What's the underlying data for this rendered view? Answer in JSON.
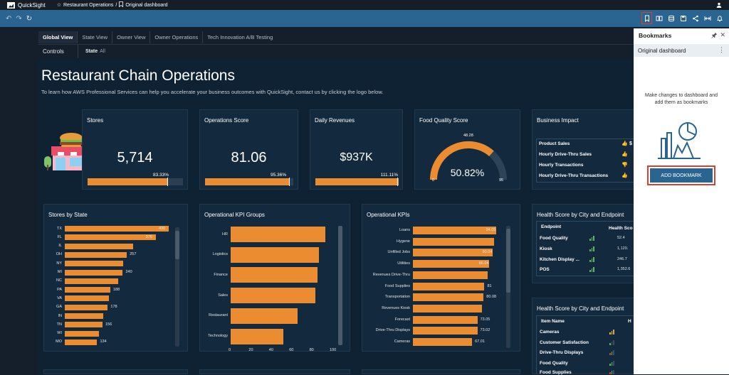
{
  "topbar": {
    "app": "QuickSight",
    "crumb1": "Restaurant Operations",
    "separator": "/",
    "crumb2": "Original dashboard"
  },
  "sheets": [
    "Global View",
    "State View",
    "Owner View",
    "Owner Operations",
    "Tech Innovation A/B Testing"
  ],
  "controls": {
    "label": "Controls",
    "state_label": "State",
    "state_value": "All"
  },
  "dashboard": {
    "title": "Restaurant Chain Operations",
    "subtitle": "To learn how AWS Professional Services can help you accelerate your business outcomes with QuickSight, contact us by clicking the logo below."
  },
  "kpis": [
    {
      "title": "Stores",
      "value": "5,714",
      "pct_label": "83.33%",
      "progress": 0.8333
    },
    {
      "title": "Operations Score",
      "value": "81.06",
      "pct_label": "95.36%",
      "progress": 0.9536
    },
    {
      "title": "Daily Revenues",
      "value": "$937K",
      "pct_label": "111.11%",
      "progress": 1.0
    }
  ],
  "gauge": {
    "title": "Food Quality Score",
    "value": "50.82%",
    "max_label": "48.28",
    "min_label": "0",
    "end_label": "95",
    "fraction": 0.73
  },
  "business": {
    "title": "Business Impact",
    "rows": [
      {
        "label": "Product Sales",
        "value": "$",
        "status": "up"
      },
      {
        "label": "Hourly Drive-Thru Sales",
        "value": "",
        "status": "up"
      },
      {
        "label": "Hourly Transactions",
        "value": "",
        "status": "down"
      },
      {
        "label": "Hourly Drive-Thru Transactions",
        "value": "",
        "status": "up"
      }
    ]
  },
  "stores_by_state": {
    "title": "Stores by State",
    "categories": [
      "TX",
      "FL",
      "IL",
      "OH",
      "NY",
      "MI",
      "NC",
      "PA",
      "VA",
      "GA",
      "IN",
      "TN",
      "WI",
      "MO"
    ],
    "values": [
      430,
      376,
      283,
      257,
      241,
      240,
      220,
      188,
      184,
      178,
      160,
      156,
      140,
      134
    ],
    "labels": [
      "430",
      "376",
      "",
      "257",
      "",
      "240",
      "",
      "188",
      "",
      "178",
      "",
      "156",
      "",
      "134"
    ],
    "max": 430
  },
  "kpi_groups": {
    "title": "Operational KPI Groups",
    "categories": [
      "HR",
      "Logistics",
      "Finance",
      "Sales",
      "Restaurant",
      "Technology"
    ],
    "values": [
      94,
      87,
      86,
      84,
      66,
      52
    ],
    "ticks": [
      "0",
      "20",
      "40",
      "60",
      "80",
      "100"
    ],
    "max": 100
  },
  "op_kpis": {
    "title": "Operational KPIs",
    "categories": [
      "Loans",
      "Hygene",
      "Unfilled Jobs",
      "Utilities",
      "Revenues Drive-Thru",
      "Food Supplies",
      "Transportation",
      "Revenues Kiosk",
      "Forecast",
      "Drive-Thru Displays",
      "Cameras"
    ],
    "values": [
      94.05,
      92,
      90.04,
      86.04,
      85,
      81,
      80.08,
      78,
      73.05,
      73.02,
      67.01
    ],
    "labels": [
      "94.05",
      "",
      "90.04",
      "86.04",
      "",
      "81",
      "80.08",
      "",
      "73.05",
      "73.02",
      "67.01"
    ],
    "max": 100
  },
  "health1": {
    "title": "Health Score by City and Endpoint",
    "col1": "Endpoint",
    "col2": "Health Sco",
    "rows": [
      {
        "label": "Food Quality",
        "value": "52.4"
      },
      {
        "label": "Kiosk",
        "value": "1,120."
      },
      {
        "label": "Kitchen Display ...",
        "value": "246.7"
      },
      {
        "label": "POS",
        "value": "1,352.6"
      }
    ]
  },
  "health2": {
    "title": "Health Score by City and Endpoint",
    "col1": "Item Name",
    "col2": "H",
    "rows": [
      {
        "label": "Cameras"
      },
      {
        "label": "Customer Satisfaction"
      },
      {
        "label": "Drive-Thru Displays"
      },
      {
        "label": "Food Quality"
      },
      {
        "label": "Food Supplies"
      }
    ]
  },
  "bookmarks": {
    "title": "Bookmarks",
    "item": "Original dashboard",
    "message": "Make changes to dashboard and add them as bookmarks",
    "button": "ADD BOOKMARK"
  },
  "colors": {
    "accent": "#ec8c30",
    "toolbar": "#2a6491",
    "card": "#132a3e",
    "highlight": "#d9412f"
  }
}
